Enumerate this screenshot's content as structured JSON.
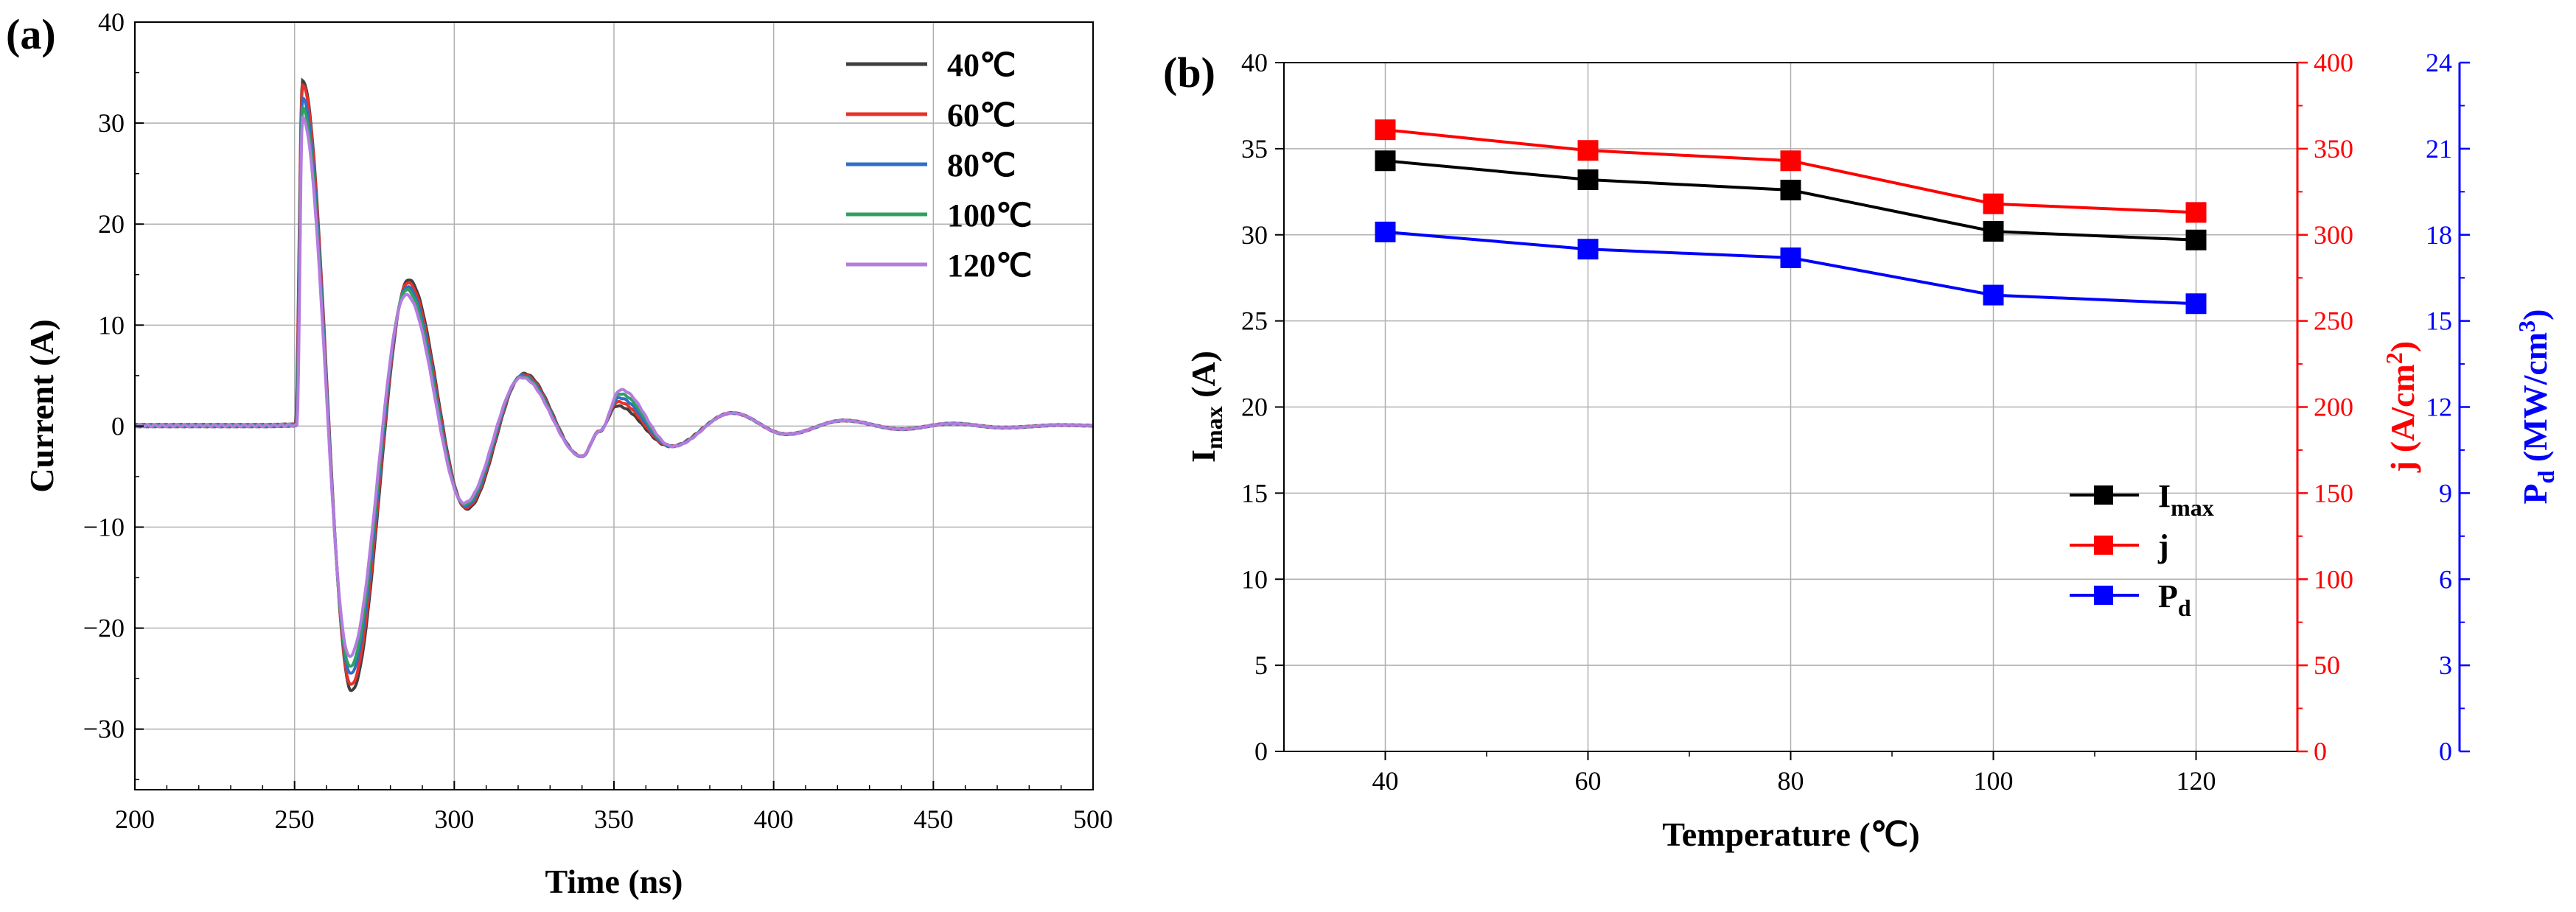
{
  "chart_data": [
    {
      "panel_label": "(a)",
      "type": "line",
      "xlabel": "Time (ns)",
      "ylabel": "Current (A)",
      "xlim": [
        200,
        500
      ],
      "ylim": [
        -36,
        40
      ],
      "xticks": [
        200,
        250,
        300,
        350,
        400,
        450,
        500
      ],
      "yticks": [
        -30,
        -20,
        -10,
        0,
        10,
        20,
        30,
        40
      ],
      "grid": true,
      "legend": "top-right",
      "series": [
        {
          "name": "40℃",
          "color": "#404040",
          "peak": 34.2,
          "trough": -26.2,
          "osc2": 14.5
        },
        {
          "name": "60℃",
          "color": "#e8312a",
          "peak": 33.8,
          "trough": -25.6,
          "osc2": 14.2
        },
        {
          "name": "80℃",
          "color": "#2f6fc8",
          "peak": 32.5,
          "trough": -24.5,
          "osc2": 13.8
        },
        {
          "name": "100℃",
          "color": "#2ca25f",
          "peak": 31.5,
          "trough": -23.8,
          "osc2": 13.5
        },
        {
          "name": "120℃",
          "color": "#b57be0",
          "peak": 30.5,
          "trough": -22.8,
          "osc2": 13.0
        }
      ]
    },
    {
      "panel_label": "(b)",
      "type": "line",
      "xlabel": "Temperature (℃)",
      "x": [
        40,
        60,
        80,
        100,
        120
      ],
      "xticks": [
        40,
        60,
        80,
        100,
        120
      ],
      "xlim": [
        30,
        130
      ],
      "grid": true,
      "legend": "bottom-right",
      "axes": {
        "left": {
          "label": "I",
          "sub": "max",
          "suffix": " (A)",
          "ylim": [
            0,
            40
          ],
          "ticks": [
            0,
            5,
            10,
            15,
            20,
            25,
            30,
            35,
            40
          ],
          "color": "#000000"
        },
        "right1": {
          "label": "j",
          "suffix": "  (A/cm",
          "sup": "2",
          "close": ")",
          "ylim": [
            0,
            400
          ],
          "ticks": [
            0,
            50,
            100,
            150,
            200,
            250,
            300,
            350,
            400
          ],
          "color": "#ff0000"
        },
        "right2": {
          "label": "P",
          "sub": "d",
          "suffix": "  (MW/cm",
          "sup": "3",
          "close": ")",
          "ylim": [
            0,
            24
          ],
          "ticks": [
            0,
            3,
            6,
            9,
            12,
            15,
            18,
            21,
            24
          ],
          "color": "#0000ff"
        }
      },
      "series": [
        {
          "name": "I",
          "sub": "max",
          "axis": "left",
          "color": "#000000",
          "values": [
            34.3,
            33.2,
            32.6,
            30.2,
            29.7
          ]
        },
        {
          "name": "j",
          "sub": "",
          "axis": "right1",
          "color": "#ff0000",
          "values": [
            361,
            349,
            343,
            318,
            313
          ]
        },
        {
          "name": "P",
          "sub": "d",
          "axis": "right2",
          "color": "#0000ff",
          "values": [
            18.1,
            17.5,
            17.2,
            15.9,
            15.6
          ]
        }
      ]
    }
  ]
}
